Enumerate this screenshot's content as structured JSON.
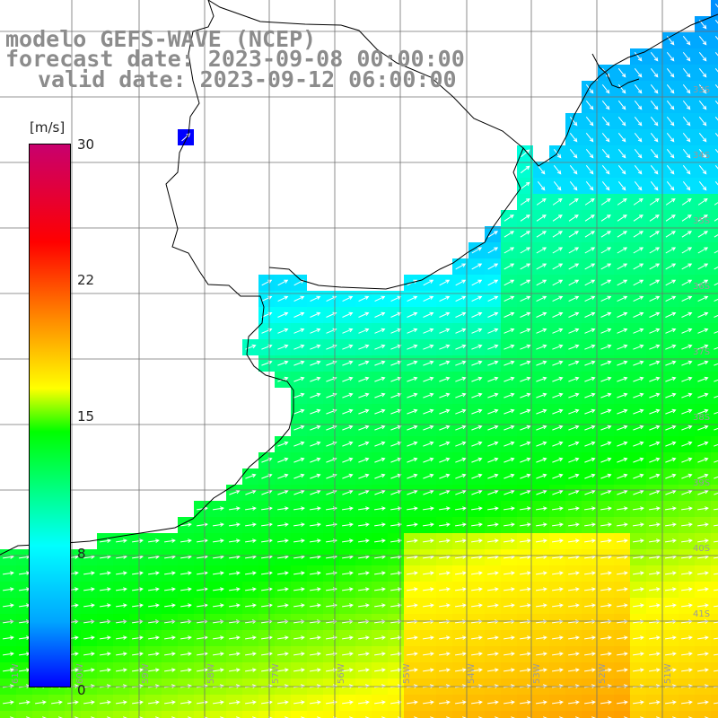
{
  "title": {
    "line1": "modelo GEFS-WAVE (NCEP)",
    "line2": "forecast date: 2023-09-08 00:00:00",
    "line3": "valid date: 2023-09-12 06:00:00"
  },
  "colorbar": {
    "unit": "[m/s]",
    "ticks": [
      "30",
      "22",
      "15",
      "8",
      "0"
    ],
    "tick_values": [
      30,
      22,
      15,
      8,
      0
    ],
    "range": [
      0,
      30
    ],
    "colors": [
      "#0000ff",
      "#00a5ff",
      "#00ffff",
      "#00ff00",
      "#ffff00",
      "#ff8800",
      "#ff0000",
      "#c8006e"
    ]
  },
  "grid": {
    "lat_labels": [
      "33S",
      "34S",
      "35S",
      "36S",
      "37S",
      "38S",
      "39S",
      "40S",
      "41S"
    ],
    "lon_labels": [
      "61W",
      "60W",
      "59W",
      "58W",
      "57W",
      "56W",
      "55W",
      "54W",
      "53W",
      "52W",
      "51W"
    ]
  },
  "wind": {
    "arrow_color": "#ffffff",
    "background_color": "#ffffff",
    "land_outline_color": "#000000",
    "grid_color": "#707070"
  }
}
